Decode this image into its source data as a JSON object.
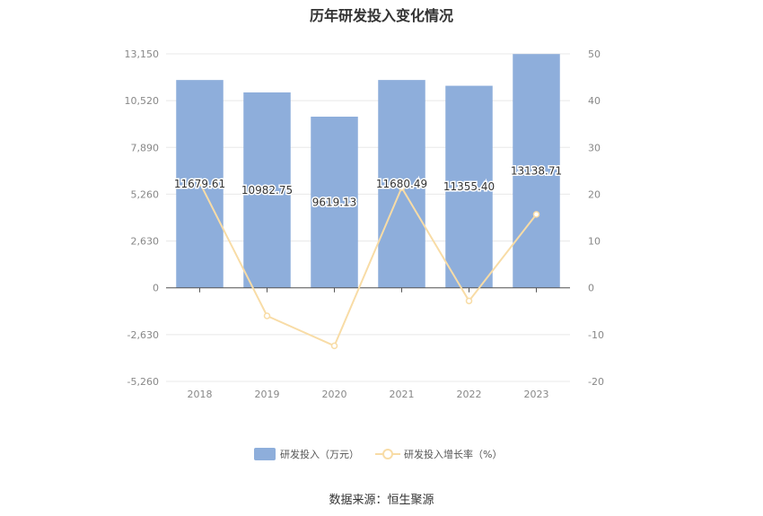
{
  "chart_data": {
    "type": "bar",
    "title": "历年研发投入变化情况",
    "categories": [
      "2018",
      "2019",
      "2020",
      "2021",
      "2022",
      "2023"
    ],
    "series": [
      {
        "name": "研发投入（万元）",
        "type": "bar",
        "axis": "left",
        "values": [
          11679.61,
          10982.75,
          9619.13,
          11680.49,
          11355.4,
          13138.71
        ],
        "labels": [
          "11679.61",
          "10982.75",
          "9619.13",
          "11680.49",
          "11355.40",
          "13138.71"
        ],
        "color": "#8eaedb"
      },
      {
        "name": "研发投入增长率（%）",
        "type": "line",
        "axis": "right",
        "values": [
          22.5,
          -6.0,
          -12.4,
          21.4,
          -2.8,
          15.7
        ],
        "color": "#f8dca6"
      }
    ],
    "y_left": {
      "min": -5260,
      "max": 13150,
      "ticks": [
        "13,150",
        "10,520",
        "7,890",
        "5,260",
        "2,630",
        "0",
        "-2,630",
        "-5,260"
      ]
    },
    "y_right": {
      "min": -20,
      "max": 50,
      "ticks": [
        "50",
        "40",
        "30",
        "20",
        "10",
        "0",
        "-10",
        "-20"
      ]
    },
    "grid": true,
    "legend_position": "bottom"
  },
  "source_text": "数据来源：恒生聚源",
  "colors": {
    "bar": "#8eaedb",
    "line": "#f8dca6",
    "grid": "#e8e8e8",
    "axis": "#555555",
    "tick_text": "#888888"
  }
}
